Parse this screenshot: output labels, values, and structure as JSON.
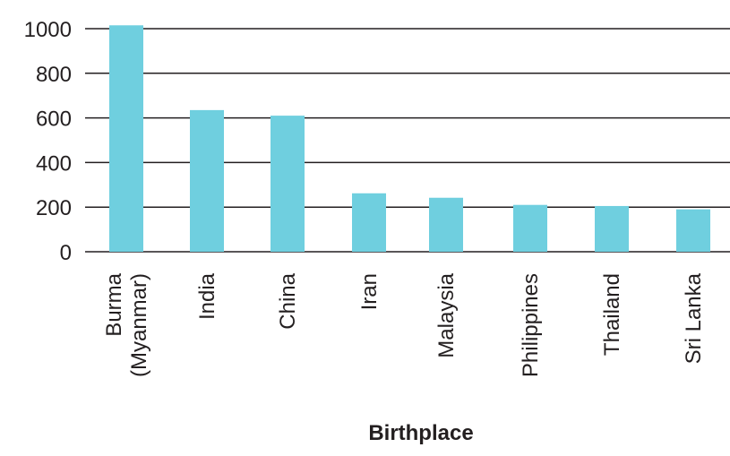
{
  "chart_data": {
    "type": "bar",
    "title": "",
    "xlabel": "Birthplace",
    "ylabel": "",
    "ylim": [
      0,
      1000
    ],
    "yticks": [
      0,
      200,
      400,
      600,
      800,
      1000
    ],
    "grid": true,
    "categories": [
      [
        "Burma",
        "(Myanmar)"
      ],
      [
        "India"
      ],
      [
        "China"
      ],
      [
        "Iran"
      ],
      [
        "Malaysia"
      ],
      [
        "Philippines"
      ],
      [
        "Thailand"
      ],
      [
        "Sri Lanka"
      ]
    ],
    "values": [
      1015,
      635,
      610,
      262,
      242,
      210,
      205,
      190
    ],
    "colors": {
      "bar": "#6fcfdf",
      "grid": "#231f20",
      "text": "#231f20"
    }
  }
}
